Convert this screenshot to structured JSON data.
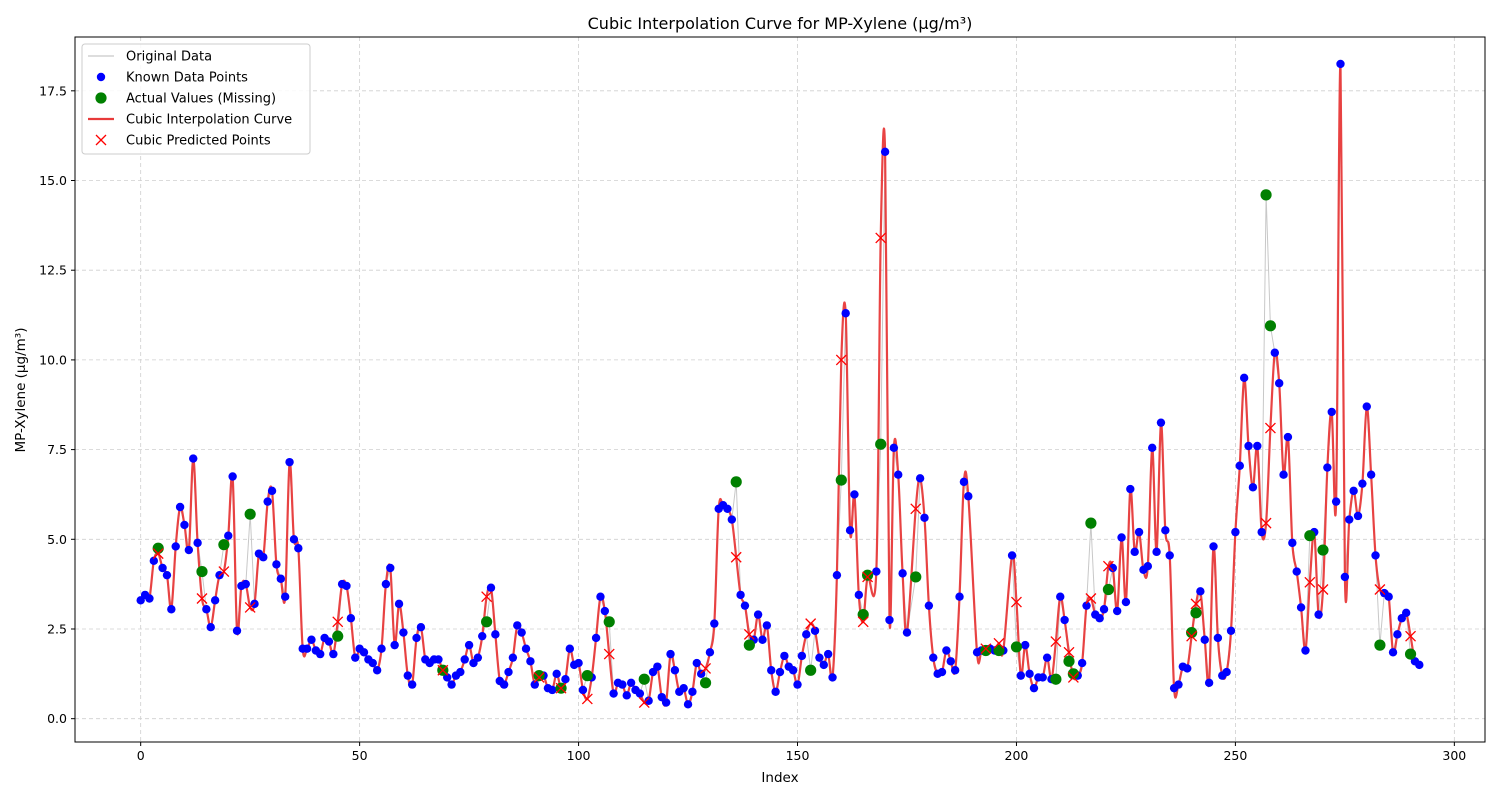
{
  "chart_data": {
    "type": "line",
    "title": "Cubic Interpolation Curve for MP-Xylene (µg/m³)",
    "xlabel": "Index",
    "ylabel": "MP-Xylene (µg/m³)",
    "xlim": [
      -15,
      307
    ],
    "ylim": [
      -0.65,
      19.0
    ],
    "xticks": [
      0,
      50,
      100,
      150,
      200,
      250,
      300
    ],
    "yticks": [
      0.0,
      2.5,
      5.0,
      7.5,
      10.0,
      12.5,
      15.0,
      17.5
    ],
    "xtick_labels": [
      "0",
      "50",
      "100",
      "150",
      "200",
      "250",
      "300"
    ],
    "ytick_labels": [
      "0.0",
      "2.5",
      "5.0",
      "7.5",
      "10.0",
      "12.5",
      "15.0",
      "17.5"
    ],
    "grid": true,
    "legend_position": "top-left",
    "legend": [
      {
        "label": "Original Data",
        "kind": "line",
        "color": "#bbbbbb"
      },
      {
        "label": "Known Data Points",
        "kind": "dot",
        "color": "#0000ff"
      },
      {
        "label": "Actual Values (Missing)",
        "kind": "bigdot",
        "color": "#008000"
      },
      {
        "label": "Cubic Interpolation Curve",
        "kind": "thickline",
        "color": "#e83a3a"
      },
      {
        "label": "Cubic Predicted Points",
        "kind": "cross",
        "color": "#ff0000"
      }
    ],
    "series": {
      "known": [
        [
          0,
          3.3
        ],
        [
          1,
          3.45
        ],
        [
          2,
          3.35
        ],
        [
          3,
          4.4
        ],
        [
          5,
          4.2
        ],
        [
          6,
          4.0
        ],
        [
          7,
          3.05
        ],
        [
          8,
          4.8
        ],
        [
          9,
          5.9
        ],
        [
          10,
          5.4
        ],
        [
          11,
          4.7
        ],
        [
          12,
          7.25
        ],
        [
          13,
          4.9
        ],
        [
          15,
          3.05
        ],
        [
          16,
          2.55
        ],
        [
          17,
          3.3
        ],
        [
          18,
          4.0
        ],
        [
          20,
          5.1
        ],
        [
          21,
          6.75
        ],
        [
          22,
          2.45
        ],
        [
          23,
          3.7
        ],
        [
          24,
          3.75
        ],
        [
          26,
          3.2
        ],
        [
          27,
          4.6
        ],
        [
          28,
          4.5
        ],
        [
          29,
          6.05
        ],
        [
          30,
          6.35
        ],
        [
          31,
          4.3
        ],
        [
          32,
          3.9
        ],
        [
          33,
          3.4
        ],
        [
          34,
          7.15
        ],
        [
          35,
          5.0
        ],
        [
          36,
          4.75
        ],
        [
          37,
          1.95
        ],
        [
          38,
          1.95
        ],
        [
          39,
          2.2
        ],
        [
          40,
          1.9
        ],
        [
          41,
          1.8
        ],
        [
          42,
          2.25
        ],
        [
          43,
          2.15
        ],
        [
          44,
          1.8
        ],
        [
          46,
          3.75
        ],
        [
          47,
          3.7
        ],
        [
          48,
          2.8
        ],
        [
          49,
          1.7
        ],
        [
          50,
          1.95
        ],
        [
          51,
          1.85
        ],
        [
          52,
          1.65
        ],
        [
          53,
          1.55
        ],
        [
          54,
          1.35
        ],
        [
          55,
          1.95
        ],
        [
          56,
          3.75
        ],
        [
          57,
          4.2
        ],
        [
          58,
          2.05
        ],
        [
          59,
          3.2
        ],
        [
          60,
          2.4
        ],
        [
          61,
          1.2
        ],
        [
          62,
          0.95
        ],
        [
          63,
          2.25
        ],
        [
          64,
          2.55
        ],
        [
          65,
          1.65
        ],
        [
          66,
          1.55
        ],
        [
          67,
          1.65
        ],
        [
          68,
          1.65
        ],
        [
          70,
          1.15
        ],
        [
          71,
          0.95
        ],
        [
          72,
          1.2
        ],
        [
          73,
          1.3
        ],
        [
          74,
          1.65
        ],
        [
          75,
          2.05
        ],
        [
          76,
          1.55
        ],
        [
          77,
          1.7
        ],
        [
          78,
          2.3
        ],
        [
          80,
          3.65
        ],
        [
          81,
          2.35
        ],
        [
          82,
          1.05
        ],
        [
          83,
          0.95
        ],
        [
          84,
          1.3
        ],
        [
          85,
          1.7
        ],
        [
          86,
          2.6
        ],
        [
          87,
          2.4
        ],
        [
          88,
          1.95
        ],
        [
          89,
          1.6
        ],
        [
          90,
          0.95
        ],
        [
          92,
          1.2
        ],
        [
          93,
          0.85
        ],
        [
          94,
          0.8
        ],
        [
          95,
          1.25
        ],
        [
          97,
          1.1
        ],
        [
          98,
          1.95
        ],
        [
          99,
          1.5
        ],
        [
          100,
          1.55
        ],
        [
          101,
          0.8
        ],
        [
          103,
          1.15
        ],
        [
          104,
          2.25
        ],
        [
          105,
          3.4
        ],
        [
          106,
          3.0
        ],
        [
          108,
          0.7
        ],
        [
          109,
          1.0
        ],
        [
          110,
          0.95
        ],
        [
          111,
          0.65
        ],
        [
          112,
          1.0
        ],
        [
          113,
          0.8
        ],
        [
          114,
          0.7
        ],
        [
          116,
          0.5
        ],
        [
          117,
          1.3
        ],
        [
          118,
          1.45
        ],
        [
          119,
          0.6
        ],
        [
          120,
          0.45
        ],
        [
          121,
          1.8
        ],
        [
          122,
          1.35
        ],
        [
          123,
          0.75
        ],
        [
          124,
          0.85
        ],
        [
          125,
          0.4
        ],
        [
          126,
          0.75
        ],
        [
          127,
          1.55
        ],
        [
          128,
          1.25
        ],
        [
          130,
          1.85
        ],
        [
          131,
          2.65
        ],
        [
          132,
          5.85
        ],
        [
          133,
          5.95
        ],
        [
          134,
          5.85
        ],
        [
          135,
          5.55
        ],
        [
          137,
          3.45
        ],
        [
          138,
          3.15
        ],
        [
          140,
          2.2
        ],
        [
          141,
          2.9
        ],
        [
          142,
          2.2
        ],
        [
          143,
          2.6
        ],
        [
          144,
          1.35
        ],
        [
          145,
          0.75
        ],
        [
          146,
          1.3
        ],
        [
          147,
          1.75
        ],
        [
          148,
          1.45
        ],
        [
          149,
          1.35
        ],
        [
          150,
          0.95
        ],
        [
          151,
          1.75
        ],
        [
          152,
          2.35
        ],
        [
          154,
          2.45
        ],
        [
          155,
          1.7
        ],
        [
          156,
          1.5
        ],
        [
          157,
          1.8
        ],
        [
          158,
          1.15
        ],
        [
          159,
          4.0
        ],
        [
          161,
          11.3
        ],
        [
          162,
          5.25
        ],
        [
          163,
          6.25
        ],
        [
          164,
          3.45
        ],
        [
          168,
          4.1
        ],
        [
          170,
          15.8
        ],
        [
          171,
          2.75
        ],
        [
          172,
          7.55
        ],
        [
          173,
          6.8
        ],
        [
          174,
          4.05
        ],
        [
          175,
          2.4
        ],
        [
          178,
          6.7
        ],
        [
          179,
          5.6
        ],
        [
          180,
          3.15
        ],
        [
          181,
          1.7
        ],
        [
          182,
          1.25
        ],
        [
          183,
          1.3
        ],
        [
          184,
          1.9
        ],
        [
          185,
          1.6
        ],
        [
          186,
          1.35
        ],
        [
          187,
          3.4
        ],
        [
          188,
          6.6
        ],
        [
          189,
          6.2
        ],
        [
          191,
          1.85
        ],
        [
          192,
          1.9
        ],
        [
          194,
          1.95
        ],
        [
          195,
          1.9
        ],
        [
          197,
          1.9
        ],
        [
          199,
          4.55
        ],
        [
          201,
          1.2
        ],
        [
          202,
          2.05
        ],
        [
          203,
          1.25
        ],
        [
          204,
          0.85
        ],
        [
          205,
          1.15
        ],
        [
          206,
          1.15
        ],
        [
          207,
          1.7
        ],
        [
          208,
          1.1
        ],
        [
          210,
          3.4
        ],
        [
          211,
          2.75
        ],
        [
          214,
          1.2
        ],
        [
          215,
          1.55
        ],
        [
          216,
          3.15
        ],
        [
          218,
          2.9
        ],
        [
          219,
          2.8
        ],
        [
          220,
          3.05
        ],
        [
          222,
          4.2
        ],
        [
          223,
          3.0
        ],
        [
          224,
          5.05
        ],
        [
          225,
          3.25
        ],
        [
          226,
          6.4
        ],
        [
          227,
          4.65
        ],
        [
          228,
          5.2
        ],
        [
          229,
          4.15
        ],
        [
          230,
          4.25
        ],
        [
          231,
          7.55
        ],
        [
          232,
          4.65
        ],
        [
          233,
          8.25
        ],
        [
          234,
          5.25
        ],
        [
          235,
          4.55
        ],
        [
          236,
          0.85
        ],
        [
          237,
          0.95
        ],
        [
          238,
          1.45
        ],
        [
          239,
          1.4
        ],
        [
          242,
          3.55
        ],
        [
          243,
          2.2
        ],
        [
          244,
          1.0
        ],
        [
          245,
          4.8
        ],
        [
          246,
          2.25
        ],
        [
          247,
          1.2
        ],
        [
          248,
          1.3
        ],
        [
          249,
          2.45
        ],
        [
          250,
          5.2
        ],
        [
          251,
          7.05
        ],
        [
          252,
          9.5
        ],
        [
          253,
          7.6
        ],
        [
          254,
          6.45
        ],
        [
          255,
          7.6
        ],
        [
          256,
          5.2
        ],
        [
          259,
          10.2
        ],
        [
          260,
          9.35
        ],
        [
          261,
          6.8
        ],
        [
          262,
          7.85
        ],
        [
          263,
          4.9
        ],
        [
          264,
          4.1
        ],
        [
          265,
          3.1
        ],
        [
          266,
          1.9
        ],
        [
          268,
          5.2
        ],
        [
          269,
          2.9
        ],
        [
          271,
          7.0
        ],
        [
          272,
          8.55
        ],
        [
          273,
          6.05
        ],
        [
          274,
          18.25
        ],
        [
          275,
          3.95
        ],
        [
          276,
          5.55
        ],
        [
          277,
          6.35
        ],
        [
          278,
          5.65
        ],
        [
          279,
          6.55
        ],
        [
          280,
          8.7
        ],
        [
          281,
          6.8
        ],
        [
          282,
          4.55
        ],
        [
          284,
          3.5
        ],
        [
          285,
          3.4
        ],
        [
          286,
          1.85
        ],
        [
          287,
          2.35
        ],
        [
          288,
          2.8
        ],
        [
          289,
          2.95
        ],
        [
          291,
          1.6
        ],
        [
          292,
          1.5
        ]
      ],
      "actual_missing": [
        [
          4,
          4.75
        ],
        [
          14,
          4.1
        ],
        [
          19,
          4.85
        ],
        [
          25,
          5.7
        ],
        [
          45,
          2.3
        ],
        [
          69,
          1.35
        ],
        [
          79,
          2.7
        ],
        [
          91,
          1.2
        ],
        [
          96,
          0.85
        ],
        [
          102,
          1.2
        ],
        [
          107,
          2.7
        ],
        [
          115,
          1.1
        ],
        [
          129,
          1.0
        ],
        [
          136,
          6.6
        ],
        [
          139,
          2.05
        ],
        [
          153,
          1.35
        ],
        [
          160,
          6.65
        ],
        [
          165,
          2.9
        ],
        [
          166,
          4.0
        ],
        [
          169,
          7.65
        ],
        [
          177,
          3.95
        ],
        [
          193,
          1.9
        ],
        [
          196,
          1.9
        ],
        [
          200,
          2.0
        ],
        [
          209,
          1.1
        ],
        [
          212,
          1.6
        ],
        [
          213,
          1.25
        ],
        [
          217,
          5.45
        ],
        [
          221,
          3.6
        ],
        [
          240,
          2.4
        ],
        [
          241,
          2.95
        ],
        [
          257,
          14.6
        ],
        [
          258,
          10.95
        ],
        [
          267,
          5.1
        ],
        [
          270,
          4.7
        ],
        [
          283,
          2.05
        ],
        [
          290,
          1.8
        ]
      ],
      "predicted": [
        [
          4,
          4.6
        ],
        [
          14,
          3.35
        ],
        [
          19,
          4.1
        ],
        [
          25,
          3.1
        ],
        [
          45,
          2.7
        ],
        [
          69,
          1.35
        ],
        [
          79,
          3.4
        ],
        [
          91,
          1.15
        ],
        [
          96,
          0.85
        ],
        [
          102,
          0.55
        ],
        [
          107,
          1.8
        ],
        [
          115,
          0.45
        ],
        [
          129,
          1.4
        ],
        [
          136,
          4.5
        ],
        [
          139,
          2.35
        ],
        [
          153,
          2.65
        ],
        [
          160,
          10.0
        ],
        [
          165,
          2.7
        ],
        [
          166,
          3.95
        ],
        [
          169,
          13.4
        ],
        [
          177,
          5.85
        ],
        [
          193,
          1.95
        ],
        [
          196,
          2.1
        ],
        [
          200,
          3.25
        ],
        [
          209,
          2.15
        ],
        [
          212,
          1.85
        ],
        [
          213,
          1.15
        ],
        [
          217,
          3.35
        ],
        [
          221,
          4.25
        ],
        [
          240,
          2.3
        ],
        [
          241,
          3.2
        ],
        [
          257,
          5.45
        ],
        [
          258,
          8.1
        ],
        [
          267,
          3.8
        ],
        [
          270,
          3.6
        ],
        [
          283,
          3.6
        ],
        [
          290,
          2.3
        ]
      ]
    },
    "colors": {
      "original_line": "#c8c8c8",
      "known": "#0000ff",
      "actual_missing": "#008000",
      "curve": "#e83a3a",
      "predicted": "#ff0000",
      "grid": "#cfcfcf"
    }
  }
}
